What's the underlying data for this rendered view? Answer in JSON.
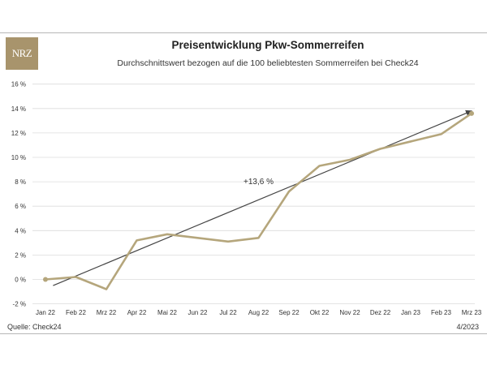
{
  "header": {
    "logo_text": "NRZ",
    "title": "Preisentwicklung Pkw-Sommerreifen",
    "subtitle": "Durchschnittswert bezogen auf die 100 beliebtesten Sommerreifen bei Check24"
  },
  "footer": {
    "source": "Quelle: Check24",
    "date": "4/2023"
  },
  "colors": {
    "line": "#b5a67c",
    "trend": "#444444",
    "grid": "#dcdcdc"
  },
  "chart_data": {
    "type": "line",
    "title": "Preisentwicklung Pkw-Sommerreifen",
    "subtitle": "Durchschnittswert bezogen auf die 100 beliebtesten Sommerreifen bei Check24",
    "categories": [
      "Jan 22",
      "Feb 22",
      "Mrz 22",
      "Apr 22",
      "Mai 22",
      "Jun 22",
      "Jul 22",
      "Aug 22",
      "Sep 22",
      "Okt 22",
      "Nov 22",
      "Dez 22",
      "Jan 23",
      "Feb 23",
      "Mrz 23"
    ],
    "series": [
      {
        "values": [
          0.0,
          0.2,
          -0.8,
          3.2,
          3.7,
          3.4,
          3.1,
          3.4,
          7.2,
          9.3,
          9.8,
          10.7,
          11.3,
          11.9,
          13.6
        ]
      }
    ],
    "ylim": [
      -2,
      16
    ],
    "yticks": [
      -2,
      0,
      2,
      4,
      6,
      8,
      10,
      12,
      14,
      16
    ],
    "ytick_labels": [
      "-2 %",
      "0 %",
      "2 %",
      "4 %",
      "6 %",
      "8 %",
      "10 %",
      "12 %",
      "14 %",
      "16 %"
    ],
    "trend": {
      "x_start": 0.25,
      "y_start": -0.5,
      "x_end": 14.0,
      "y_end": 13.8
    },
    "annotations": [
      {
        "text": "+13,6 %",
        "x": 7.0,
        "y": 7.8
      }
    ],
    "grid": true,
    "legend": "none"
  }
}
